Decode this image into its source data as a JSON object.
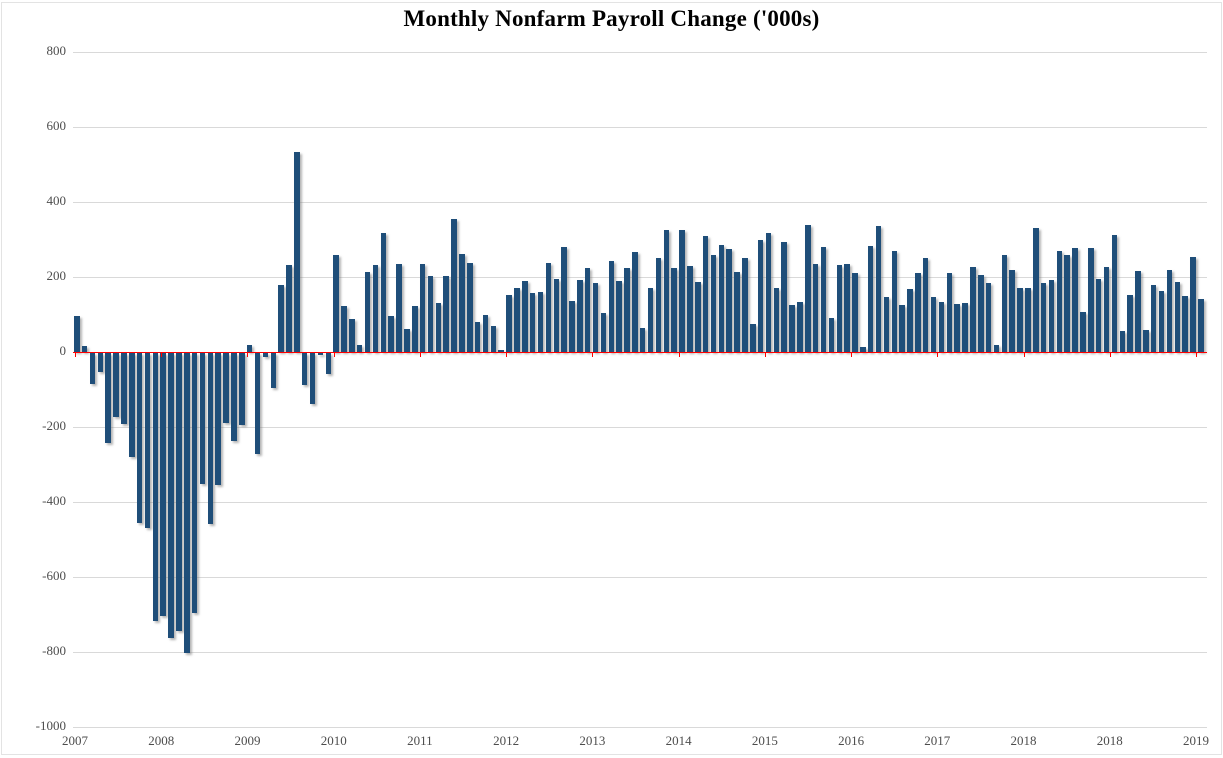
{
  "title_block": {
    "title": "Monthly Nonfarm Payroll Change ('000s)"
  },
  "colors": {
    "bar": "#1F4E79",
    "zero_line": "#FF0000",
    "gridline": "#D9D9D9",
    "axis_text": "#4D4D4D",
    "title_text": "#000000",
    "background": "#FFFFFF"
  },
  "chart_data": {
    "type": "bar",
    "title": "Monthly Nonfarm Payroll Change ('000s)",
    "xlabel": "",
    "ylabel": "",
    "x_axis_labels": [
      "2007",
      "2008",
      "2009",
      "2010",
      "2011",
      "2012",
      "2013",
      "2014",
      "2015",
      "2016",
      "2017",
      "2018",
      "2018",
      "2019"
    ],
    "y_ticks": [
      800,
      600,
      400,
      200,
      0,
      -200,
      -400,
      -600,
      -800,
      -1000
    ],
    "ylim": [
      -1000,
      800
    ],
    "grid": true,
    "zero_axis_highlighted": true,
    "legend_position": "none",
    "values": [
      95,
      15,
      -83,
      -50,
      -240,
      -170,
      -188,
      -277,
      -452,
      -466,
      -715,
      -701,
      -759,
      -740,
      -800,
      -693,
      -348,
      -455,
      -352,
      -186,
      -234,
      -192,
      19,
      -268,
      -10,
      -92,
      180,
      232,
      533,
      -85,
      -135,
      -5,
      -57,
      260,
      124,
      87,
      20,
      213,
      233,
      318,
      96,
      236,
      61,
      123,
      236,
      203,
      132,
      204,
      355,
      261,
      238,
      81,
      99,
      69,
      5,
      151,
      172,
      190,
      158,
      161,
      238,
      194,
      279,
      137,
      192,
      223,
      183,
      105,
      242,
      190,
      225,
      266,
      63,
      170,
      252,
      326,
      223,
      326,
      230,
      188,
      310,
      260,
      285,
      275,
      214,
      250,
      76,
      299,
      318,
      170,
      294,
      125,
      134,
      339,
      234,
      281,
      90,
      232,
      236,
      212,
      14,
      284,
      336,
      148,
      269,
      125,
      168,
      212,
      250,
      148,
      133,
      212,
      127,
      132,
      228,
      205,
      185,
      20,
      259,
      219,
      172,
      172,
      330,
      183,
      192,
      269,
      260,
      278,
      108,
      277,
      194,
      226,
      312,
      56,
      152,
      216,
      59,
      179,
      163,
      219,
      188,
      149,
      254,
      141
    ]
  }
}
